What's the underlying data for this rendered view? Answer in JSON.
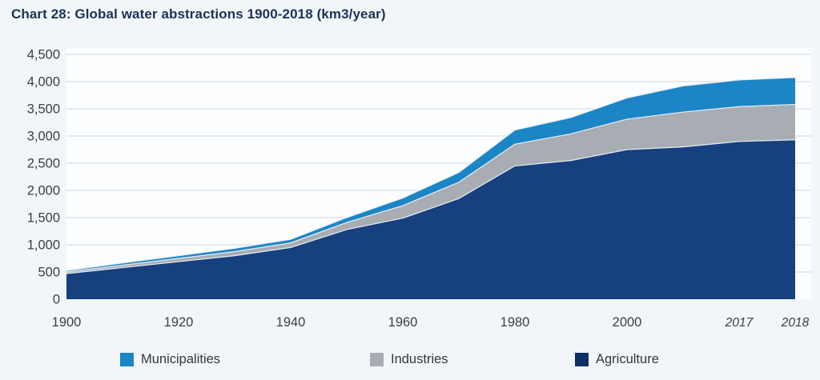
{
  "title": "Chart 28: Global water abstractions 1900-2018 (km3/year)",
  "colors": {
    "page_background": "#f2f6f9",
    "plot_background": "#fcfdfe",
    "gridline": "#d9dee3",
    "boundary_highlight": "#e6edf3",
    "tick_text": "#3b4046",
    "title_text": "#1c3254"
  },
  "chart_data": {
    "type": "area",
    "stacked": true,
    "title": "Chart 28: Global water abstractions 1900-2018 (km3/year)",
    "xlabel": "",
    "ylabel": "km3/year",
    "ylim": [
      0,
      4500
    ],
    "grid": "horizontal",
    "legend_position": "bottom",
    "categories": [
      "1900",
      "1910",
      "1920",
      "1930",
      "1940",
      "1950",
      "1960",
      "1970",
      "1980",
      "1990",
      "2000",
      "2010",
      "2017",
      "2018"
    ],
    "series": [
      {
        "name": "Municipalities",
        "color": "#1b85c6",
        "legend_color": "#1b85c6",
        "values": [
          25,
          40,
          50,
          60,
          65,
          90,
          140,
          180,
          260,
          300,
          390,
          480,
          490,
          495
        ]
      },
      {
        "name": "Industries",
        "color": "#a8adb3",
        "legend_color": "#a8adb3",
        "values": [
          30,
          45,
          60,
          75,
          85,
          130,
          230,
          300,
          400,
          490,
          560,
          640,
          640,
          650
        ]
      },
      {
        "name": "Agriculture",
        "color": "#17407e",
        "legend_color": "#0d2f63",
        "values": [
          470,
          580,
          690,
          800,
          950,
          1280,
          1490,
          1850,
          2450,
          2550,
          2750,
          2800,
          2900,
          2930
        ]
      }
    ],
    "y_ticks": [
      "0",
      "500",
      "1,000",
      "1,500",
      "2,000",
      "2,500",
      "3,000",
      "3,500",
      "4,000",
      "4,500"
    ],
    "y_tick_step": 500,
    "x_ticks": [
      {
        "label": "1900",
        "index": 0,
        "italic": false
      },
      {
        "label": "1920",
        "index": 2,
        "italic": false
      },
      {
        "label": "1940",
        "index": 4,
        "italic": false
      },
      {
        "label": "1960",
        "index": 6,
        "italic": false
      },
      {
        "label": "1980",
        "index": 8,
        "italic": false
      },
      {
        "label": "2000",
        "index": 10,
        "italic": false
      },
      {
        "label": "2017",
        "index": 12,
        "italic": true
      },
      {
        "label": "2018",
        "index": 13,
        "italic": true
      }
    ]
  }
}
